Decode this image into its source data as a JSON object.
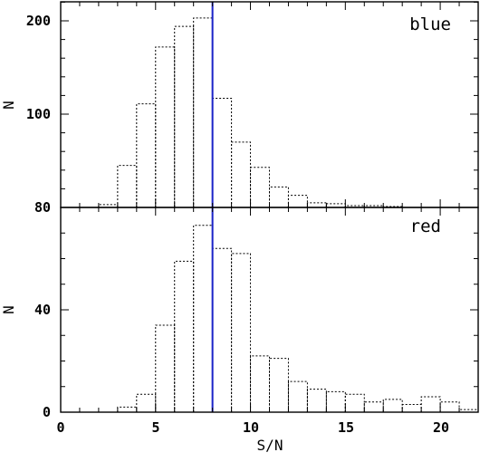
{
  "chart_data": [
    {
      "panel": "blue",
      "type": "bar",
      "label": "blue",
      "ylabel": "N",
      "xlabel": "",
      "ytick_labels": [
        "80",
        "100",
        "200"
      ],
      "xlim": [
        0,
        22
      ],
      "vline_x": 8,
      "vline_color": "#1a22c8",
      "bin_width": 1,
      "bins": [
        {
          "x": 2,
          "y": 3
        },
        {
          "x": 3,
          "y": 45
        },
        {
          "x": 4,
          "y": 111
        },
        {
          "x": 5,
          "y": 172
        },
        {
          "x": 6,
          "y": 194
        },
        {
          "x": 7,
          "y": 203
        },
        {
          "x": 8,
          "y": 117
        },
        {
          "x": 9,
          "y": 70
        },
        {
          "x": 10,
          "y": 43
        },
        {
          "x": 11,
          "y": 22
        },
        {
          "x": 12,
          "y": 13
        },
        {
          "x": 13,
          "y": 5
        },
        {
          "x": 14,
          "y": 4
        },
        {
          "x": 15,
          "y": 2
        },
        {
          "x": 16,
          "y": 2
        },
        {
          "x": 17,
          "y": 1
        }
      ]
    },
    {
      "panel": "red",
      "type": "bar",
      "label": "red",
      "ylabel": "N",
      "xlabel": "S/N",
      "ytick_labels": [
        "0",
        "40"
      ],
      "xtick_labels": [
        "0",
        "5",
        "10",
        "15",
        "20"
      ],
      "xlim": [
        0,
        22
      ],
      "ylim": [
        0,
        80
      ],
      "vline_x": 8,
      "vline_color": "#1a22c8",
      "bin_width": 1,
      "bins": [
        {
          "x": 0,
          "y": 0
        },
        {
          "x": 1,
          "y": 0
        },
        {
          "x": 2,
          "y": 0
        },
        {
          "x": 3,
          "y": 2
        },
        {
          "x": 4,
          "y": 7
        },
        {
          "x": 5,
          "y": 34
        },
        {
          "x": 6,
          "y": 59
        },
        {
          "x": 7,
          "y": 73
        },
        {
          "x": 8,
          "y": 64
        },
        {
          "x": 9,
          "y": 62
        },
        {
          "x": 10,
          "y": 22
        },
        {
          "x": 11,
          "y": 21
        },
        {
          "x": 12,
          "y": 12
        },
        {
          "x": 13,
          "y": 9
        },
        {
          "x": 14,
          "y": 8
        },
        {
          "x": 15,
          "y": 7
        },
        {
          "x": 16,
          "y": 4
        },
        {
          "x": 17,
          "y": 5
        },
        {
          "x": 18,
          "y": 3
        },
        {
          "x": 19,
          "y": 6
        },
        {
          "x": 20,
          "y": 4
        },
        {
          "x": 21,
          "y": 1
        }
      ]
    }
  ]
}
